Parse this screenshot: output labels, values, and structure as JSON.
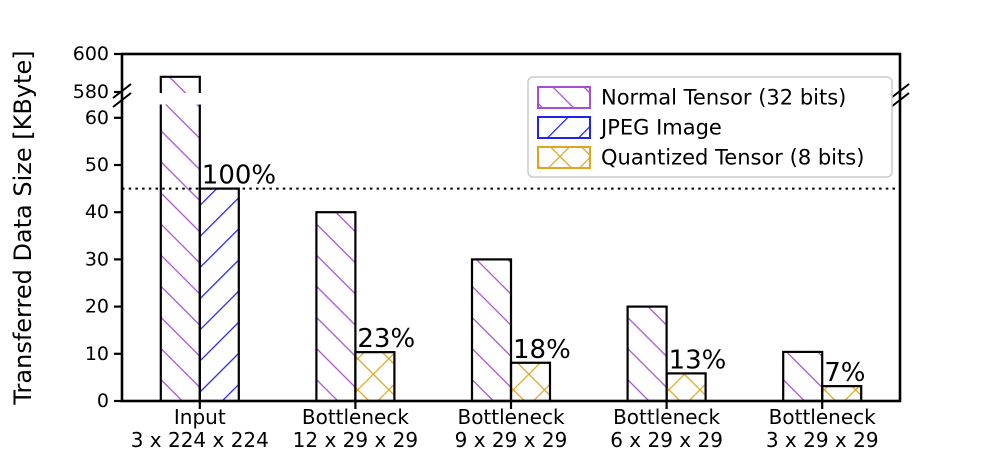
{
  "chart_data": {
    "type": "bar",
    "title": "",
    "ylabel": "Transferred Data Size [KByte]",
    "xlabel": "",
    "broken_y_axis": {
      "lower_ticks": [
        0,
        10,
        20,
        30,
        40,
        50,
        60
      ],
      "upper_ticks": [
        580,
        600
      ],
      "lower_range": [
        0,
        64
      ],
      "upper_range": [
        576,
        600
      ]
    },
    "categories": [
      {
        "line1": "Input",
        "line2": "3 x 224 x 224"
      },
      {
        "line1": "Bottleneck",
        "line2": "12 x 29 x 29"
      },
      {
        "line1": "Bottleneck",
        "line2": "9 x 29 x 29"
      },
      {
        "line1": "Bottleneck",
        "line2": "6 x 29 x 29"
      },
      {
        "line1": "Bottleneck",
        "line2": "3 x 29 x 29"
      }
    ],
    "series": [
      {
        "name": "Normal Tensor (32 bits)",
        "hatch": "\\",
        "color": "#a74fd4",
        "slot": "left",
        "values": [
          588,
          40,
          30,
          20,
          10.4
        ]
      },
      {
        "name": "JPEG Image",
        "hatch": "/",
        "color": "#2222ee",
        "slot": "right",
        "values": [
          45,
          null,
          null,
          null,
          null
        ]
      },
      {
        "name": "Quantized Tensor (8 bits)",
        "hatch": "x",
        "color": "#dda520",
        "slot": "right",
        "values": [
          null,
          10.35,
          8.1,
          5.85,
          3.15
        ]
      }
    ],
    "annotations": [
      {
        "group": 0,
        "label": "100%"
      },
      {
        "group": 1,
        "label": "23%"
      },
      {
        "group": 2,
        "label": "18%"
      },
      {
        "group": 3,
        "label": "13%"
      },
      {
        "group": 4,
        "label": "7%"
      }
    ],
    "reference_line_y": 45,
    "legend": {
      "position": "upper right",
      "entries": [
        "Normal Tensor (32 bits)",
        "JPEG Image",
        "Quantized Tensor (8 bits)"
      ]
    },
    "bar_edge_color": "#000000",
    "grid": false
  }
}
